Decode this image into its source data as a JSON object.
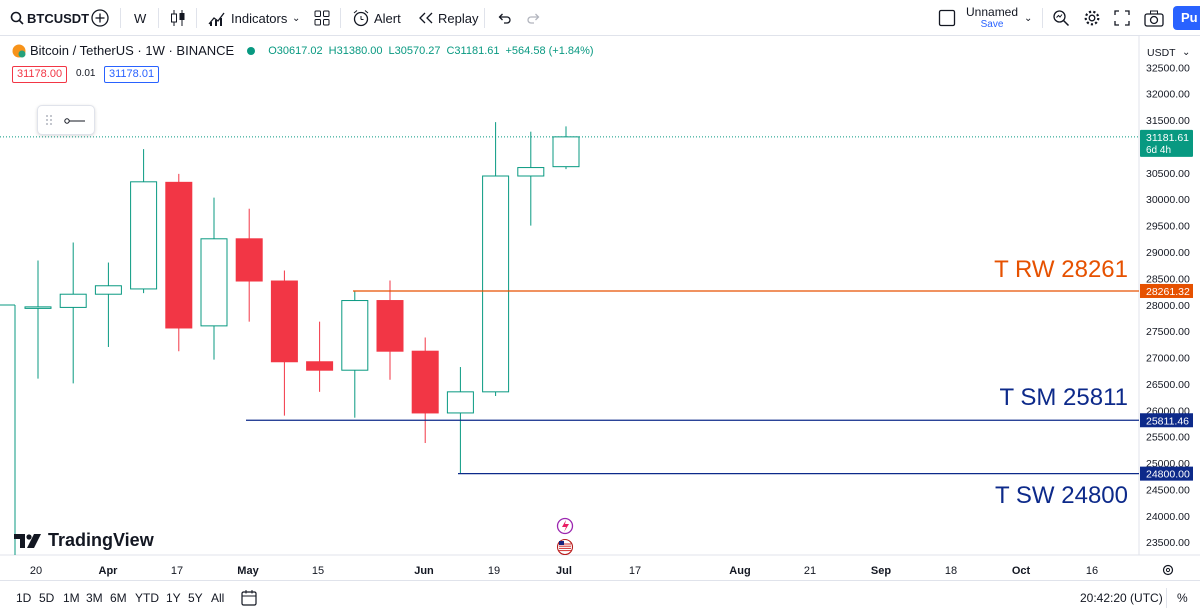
{
  "toolbar": {
    "symbol": "BTCUSDT",
    "interval": "W",
    "indicators_label": "Indicators",
    "alert_label": "Alert",
    "replay_label": "Replay",
    "layout_name": "Unnamed",
    "save_label": "Save",
    "publish_label": "Pu"
  },
  "legend": {
    "title": "Bitcoin / TetherUS · 1W · BINANCE",
    "open": "O30617.02",
    "high": "H31380.00",
    "low": "L30570.27",
    "close": "C31181.61",
    "change": "+564.58 (+1.84%)",
    "sell_price": "31178.00",
    "spread": "0.01",
    "buy_price": "31178.01"
  },
  "price_axis": {
    "currency": "USDT",
    "ticks": [
      "32500.00",
      "32000.00",
      "31500.00",
      "31000.00",
      "30500.00",
      "30000.00",
      "29500.00",
      "29000.00",
      "28500.00",
      "28000.00",
      "27500.00",
      "27000.00",
      "26500.00",
      "26000.00",
      "25500.00",
      "25000.00",
      "24500.00",
      "24000.00",
      "23500.00"
    ],
    "last_price": "31181.61",
    "countdown": "6d 4h",
    "level_labels": [
      "28261.32",
      "25811.46",
      "24800.00"
    ]
  },
  "annotations": [
    {
      "text": "T RW 28261",
      "color": "#e65100"
    },
    {
      "text": "T SM 25811",
      "color": "#0d2a8a"
    },
    {
      "text": "T SW 24800",
      "color": "#0d2a8a"
    }
  ],
  "time_axis": {
    "labels": [
      "20",
      "Apr",
      "17",
      "May",
      "15",
      "Jun",
      "19",
      "Jul",
      "17",
      "Aug",
      "21",
      "Sep",
      "18",
      "Oct",
      "16"
    ]
  },
  "brand": "TradingView",
  "ranges": [
    "1D",
    "5D",
    "1M",
    "3M",
    "6M",
    "YTD",
    "1Y",
    "5Y",
    "All"
  ],
  "clock": "20:42:20 (UTC)",
  "percent_label": "%",
  "colors": {
    "up": "#089981",
    "down": "#f23645",
    "orange": "#e65100",
    "navy": "#0d2a8a"
  },
  "chart_data": {
    "type": "candlestick",
    "candles": [
      {
        "o": 27960,
        "h": 28840,
        "l": 26600,
        "c": 27960
      },
      {
        "o": 27950,
        "h": 29180,
        "l": 26510,
        "c": 28200
      },
      {
        "o": 28200,
        "h": 28800,
        "l": 27200,
        "c": 28360
      },
      {
        "o": 28300,
        "h": 30950,
        "l": 28220,
        "c": 30330
      },
      {
        "o": 30320,
        "h": 30480,
        "l": 27120,
        "c": 27560
      },
      {
        "o": 27600,
        "h": 30030,
        "l": 26960,
        "c": 29250
      },
      {
        "o": 29250,
        "h": 29820,
        "l": 27680,
        "c": 28450
      },
      {
        "o": 28450,
        "h": 28650,
        "l": 25900,
        "c": 26920
      },
      {
        "o": 26920,
        "h": 27680,
        "l": 26350,
        "c": 26760
      },
      {
        "o": 26760,
        "h": 28270,
        "l": 25860,
        "c": 28080
      },
      {
        "o": 28080,
        "h": 28460,
        "l": 26580,
        "c": 27120
      },
      {
        "o": 27120,
        "h": 27380,
        "l": 25380,
        "c": 25950
      },
      {
        "o": 25950,
        "h": 26820,
        "l": 24800,
        "c": 26350
      },
      {
        "o": 26350,
        "h": 31460,
        "l": 26270,
        "c": 30440
      },
      {
        "o": 30440,
        "h": 31280,
        "l": 29500,
        "c": 30600
      },
      {
        "o": 30617.02,
        "h": 31380,
        "l": 30570.27,
        "c": 31181.61
      }
    ],
    "levels": [
      28261.32,
      25811.46,
      24800.0
    ],
    "last_price": 31181.61
  }
}
